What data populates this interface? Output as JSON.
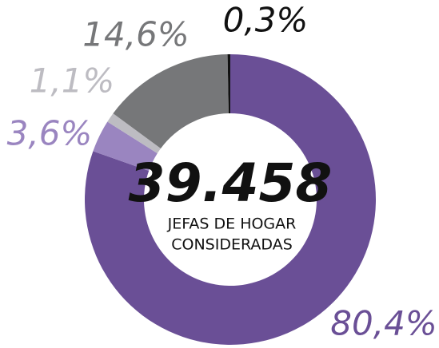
{
  "chart_data": {
    "type": "donut",
    "values": [
      80.4,
      3.6,
      1.1,
      14.6,
      0.3
    ],
    "value_labels": [
      "80,4%",
      "3,6%",
      "1,1%",
      "14,6%",
      "0,3%"
    ],
    "colors": [
      "#6a4f96",
      "#9a85c0",
      "#bdbcc2",
      "#767779",
      "#111111"
    ],
    "annotations": [
      "39.458",
      "JEFAS DE HOGAR",
      "CONSIDERADAS"
    ]
  }
}
